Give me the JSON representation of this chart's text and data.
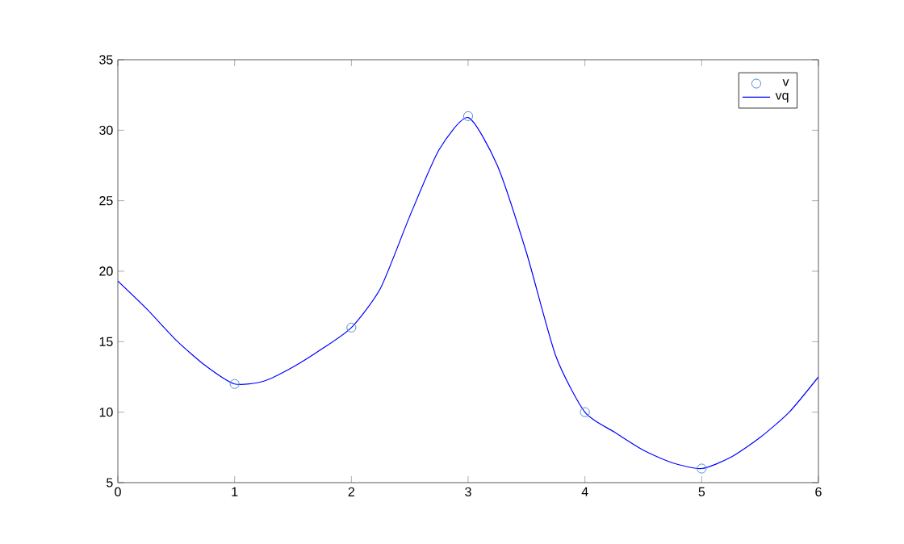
{
  "chart_data": {
    "type": "line",
    "xlim": [
      0,
      6
    ],
    "ylim": [
      5,
      35
    ],
    "xticks": [
      0,
      1,
      2,
      3,
      4,
      5,
      6
    ],
    "yticks": [
      5,
      10,
      15,
      20,
      25,
      30,
      35
    ],
    "legend": "top right",
    "grid": false,
    "series": [
      {
        "name": "v",
        "type": "scatter",
        "marker": "circle",
        "color": "#4d8fd6",
        "x": [
          1,
          2,
          3,
          4,
          5
        ],
        "values": [
          12,
          16,
          31,
          10,
          6
        ]
      },
      {
        "name": "vq",
        "marker": "none",
        "line_style": "solid",
        "color": "#0000ff",
        "x": [
          0,
          0.25,
          0.5,
          0.75,
          1,
          1.25,
          1.5,
          1.75,
          2,
          2.25,
          2.5,
          2.75,
          3,
          3.25,
          3.5,
          3.75,
          4,
          4.25,
          4.5,
          4.75,
          5,
          5.25,
          5.5,
          5.75,
          6
        ],
        "values": [
          19.3,
          17.3,
          15.1,
          13.3,
          12.0,
          12.2,
          13.2,
          14.5,
          16.0,
          18.8,
          23.9,
          28.6,
          30.9,
          27.5,
          21.3,
          14.0,
          10.0,
          8.6,
          7.3,
          6.4,
          6.0,
          6.8,
          8.2,
          10.0,
          12.5
        ]
      }
    ]
  }
}
